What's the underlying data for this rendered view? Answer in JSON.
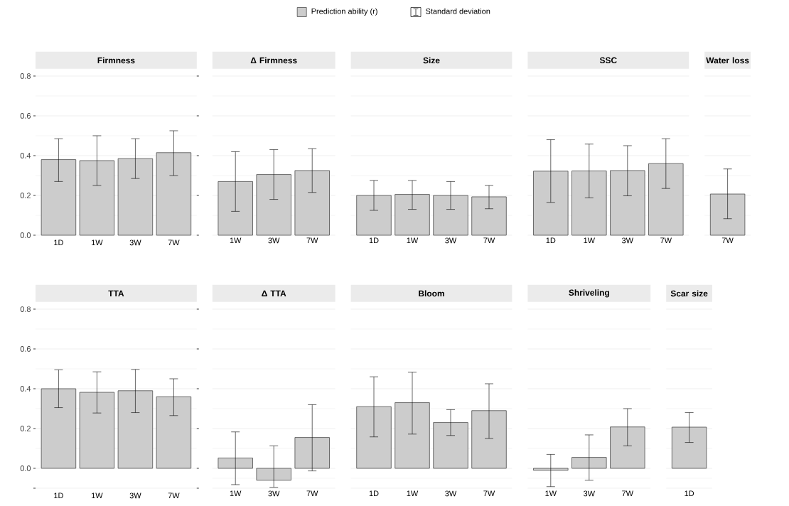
{
  "chart_data": [
    {
      "type": "bar",
      "title": "Firmness",
      "categories": [
        "1D",
        "1W",
        "3W",
        "7W"
      ],
      "ylim": [
        0,
        0.8
      ],
      "yticks": [
        {
          "value": 0,
          "label": "0.0"
        },
        {
          "value": 0.2,
          "label": "0.2"
        },
        {
          "value": 0.4,
          "label": "0.4"
        },
        {
          "value": 0.6,
          "label": "0.6"
        },
        {
          "value": 0.8,
          "label": "0.8"
        }
      ],
      "grid": "y",
      "legend": "top",
      "annotations": [
        "Standard deviation"
      ],
      "series": [
        {
          "name": "Prediction ability (r)",
          "color": "#cccccc",
          "values": [
            0.38,
            0.375,
            0.385,
            0.415
          ],
          "errors": [
            [
              0.27,
              0.485
            ],
            [
              0.25,
              0.5
            ],
            [
              0.285,
              0.485
            ],
            [
              0.3,
              0.525
            ]
          ]
        }
      ]
    },
    {
      "type": "bar",
      "title": "Δ Firmness",
      "categories": [
        "1W",
        "3W",
        "7W"
      ],
      "ylim": [
        0,
        0.8
      ],
      "yticks": [
        0,
        0.2,
        0.4,
        0.6,
        0.8
      ],
      "grid": "y",
      "tick_labels": "x",
      "series": [
        {
          "color": "#cccccc",
          "values": [
            0.27,
            0.305,
            0.325
          ],
          "errors": [
            [
              0.12,
              0.42
            ],
            [
              0.18,
              0.43
            ],
            [
              0.215,
              0.435
            ]
          ]
        }
      ]
    },
    {
      "type": "bar",
      "title": "Size",
      "categories": [
        "1D",
        "1W",
        "3W",
        "7W"
      ],
      "ylim": [
        0,
        0.8
      ],
      "yticks": [
        0,
        0.2,
        0.4,
        0.6,
        0.8
      ],
      "grid": "y",
      "tick_labels": "x",
      "series": [
        {
          "color": "#cccccc",
          "values": [
            0.2,
            0.205,
            0.2,
            0.193
          ],
          "errors": [
            [
              0.125,
              0.275
            ],
            [
              0.13,
              0.275
            ],
            [
              0.13,
              0.27
            ],
            [
              0.133,
              0.25
            ]
          ]
        }
      ]
    },
    {
      "type": "bar",
      "title": "SSC",
      "categories": [
        "1D",
        "1W",
        "3W",
        "7W"
      ],
      "ylim": [
        0,
        0.8
      ],
      "yticks": [
        0,
        0.2,
        0.4,
        0.6,
        0.8
      ],
      "grid": "y",
      "tick_labels": "x",
      "series": [
        {
          "color": "#cccccc",
          "values": [
            0.322,
            0.323,
            0.325,
            0.36
          ],
          "errors": [
            [
              0.165,
              0.48
            ],
            [
              0.188,
              0.458
            ],
            [
              0.198,
              0.45
            ],
            [
              0.235,
              0.485
            ]
          ]
        }
      ]
    },
    {
      "type": "bar",
      "title": "Water loss",
      "categories": [
        "7W"
      ],
      "ylim": [
        0,
        0.8
      ],
      "yticks": [
        0,
        0.2,
        0.4,
        0.6,
        0.8
      ],
      "grid": "y",
      "tick_labels": "x",
      "series": [
        {
          "color": "#cccccc",
          "values": [
            0.207
          ],
          "errors": [
            [
              0.083,
              0.333
            ]
          ]
        }
      ]
    },
    {
      "type": "bar",
      "title": "TTA",
      "categories": [
        "1D",
        "1W",
        "3W",
        "7W"
      ],
      "ylim": [
        -0.1,
        0.8
      ],
      "yticks": [
        {
          "value": -0.1,
          "label": null
        },
        {
          "value": 0,
          "label": "0.0"
        },
        {
          "value": 0.2,
          "label": "0.2"
        },
        {
          "value": 0.4,
          "label": "0.4"
        },
        {
          "value": 0.6,
          "label": "0.6"
        },
        {
          "value": 0.8,
          "label": "0.8"
        }
      ],
      "grid": "y",
      "series": [
        {
          "color": "#cccccc",
          "values": [
            0.4,
            0.382,
            0.39,
            0.36
          ],
          "errors": [
            [
              0.305,
              0.495
            ],
            [
              0.278,
              0.485
            ],
            [
              0.28,
              0.497
            ],
            [
              0.265,
              0.45
            ]
          ]
        }
      ]
    },
    {
      "type": "bar",
      "title": "Δ TTA",
      "categories": [
        "1W",
        "3W",
        "7W"
      ],
      "ylim": [
        -0.1,
        0.8
      ],
      "yticks": [
        -0.1,
        0,
        0.2,
        0.4,
        0.6,
        0.8
      ],
      "grid": "y",
      "tick_labels": "x",
      "series": [
        {
          "color": "#cccccc",
          "values": [
            0.052,
            -0.06,
            0.155
          ],
          "errors": [
            [
              -0.082,
              0.183
            ],
            [
              -0.095,
              0.113
            ],
            [
              -0.013,
              0.32
            ]
          ]
        }
      ]
    },
    {
      "type": "bar",
      "title": "Bloom",
      "categories": [
        "1D",
        "1W",
        "3W",
        "7W"
      ],
      "ylim": [
        -0.1,
        0.8
      ],
      "yticks": [
        -0.1,
        0,
        0.2,
        0.4,
        0.6,
        0.8
      ],
      "grid": "y",
      "tick_labels": "x",
      "series": [
        {
          "color": "#cccccc",
          "values": [
            0.31,
            0.33,
            0.23,
            0.29
          ],
          "errors": [
            [
              0.158,
              0.46
            ],
            [
              0.172,
              0.483
            ],
            [
              0.165,
              0.295
            ],
            [
              0.15,
              0.425
            ]
          ]
        }
      ]
    },
    {
      "type": "bar",
      "title": "Shriveling",
      "categories": [
        "1W",
        "3W",
        "7W"
      ],
      "ylim": [
        -0.1,
        0.8
      ],
      "yticks": [
        -0.1,
        0,
        0.2,
        0.4,
        0.6,
        0.8
      ],
      "grid": "y",
      "tick_labels": "x",
      "series": [
        {
          "color": "#cccccc",
          "values": [
            -0.01,
            0.055,
            0.208
          ],
          "errors": [
            [
              -0.092,
              0.07
            ],
            [
              -0.06,
              0.168
            ],
            [
              0.113,
              0.3
            ]
          ]
        }
      ]
    },
    {
      "type": "bar",
      "title": "Scar size",
      "categories": [
        "1D"
      ],
      "ylim": [
        -0.1,
        0.8
      ],
      "yticks": [
        -0.1,
        0,
        0.2,
        0.4,
        0.6,
        0.8
      ],
      "grid": "y",
      "tick_labels": "x",
      "series": [
        {
          "color": "#cccccc",
          "values": [
            0.207
          ],
          "errors": [
            [
              0.13,
              0.28
            ]
          ]
        }
      ]
    }
  ]
}
